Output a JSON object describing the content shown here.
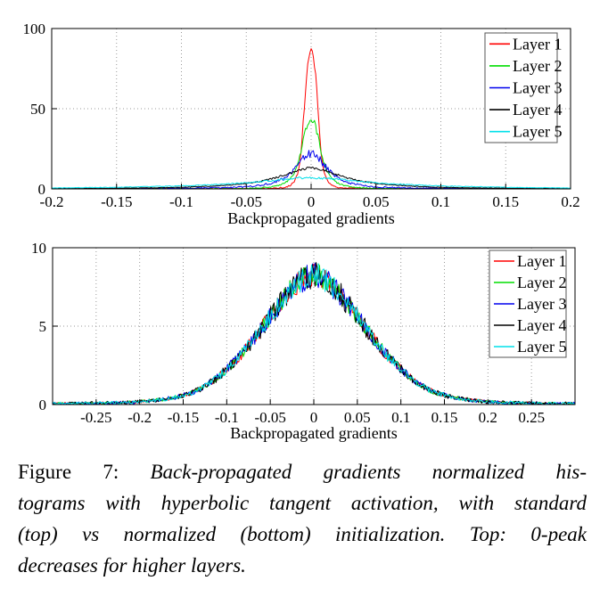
{
  "caption": {
    "label": "Figure 7:",
    "lines": [
      "Back-propagated gradients normalized his-",
      "tograms with hyperbolic tangent activation, with standard",
      "(top) vs normalized (bottom) initialization.  Top:  0-peak",
      "decreases for higher layers."
    ]
  },
  "colors": {
    "axis": "#000000",
    "grid": "#9a9a9a",
    "legend_border": "#555555",
    "legend_background": "#ffffff"
  },
  "chart_data": [
    {
      "type": "line",
      "title": "",
      "xlabel": "Backpropagated gradients",
      "ylabel": "",
      "xlim": [
        -0.2,
        0.2
      ],
      "ylim": [
        0,
        100
      ],
      "xtick_labels": [
        "-0.2",
        "-0.15",
        "-0.1",
        "-0.05",
        "0",
        "0.05",
        "0.1",
        "0.15",
        "0.2"
      ],
      "ytick_labels": [
        "0",
        "50",
        "100"
      ],
      "grid": true,
      "legend_position": "top-right",
      "series": [
        {
          "name": "Layer 1",
          "color": "#ff0000",
          "peak": 87,
          "noise": 3.0,
          "points": [
            [
              -0.2,
              0.1
            ],
            [
              -0.06,
              0.15
            ],
            [
              -0.04,
              0.25
            ],
            [
              -0.03,
              0.4
            ],
            [
              -0.025,
              0.6
            ],
            [
              -0.02,
              1
            ],
            [
              -0.016,
              2.2
            ],
            [
              -0.013,
              4.5
            ],
            [
              -0.01,
              10
            ],
            [
              -0.008,
              20
            ],
            [
              -0.006,
              42
            ],
            [
              -0.004,
              66
            ],
            [
              -0.002,
              80
            ],
            [
              0,
              87
            ],
            [
              0.002,
              80
            ],
            [
              0.004,
              66
            ],
            [
              0.006,
              42
            ],
            [
              0.008,
              20
            ],
            [
              0.01,
              10
            ],
            [
              0.013,
              4.5
            ],
            [
              0.016,
              2.2
            ],
            [
              0.02,
              1
            ],
            [
              0.025,
              0.6
            ],
            [
              0.03,
              0.4
            ],
            [
              0.04,
              0.25
            ],
            [
              0.06,
              0.15
            ],
            [
              0.2,
              0.1
            ]
          ]
        },
        {
          "name": "Layer 2",
          "color": "#00dd00",
          "peak": 44,
          "noise": 2.5,
          "points": [
            [
              -0.2,
              0.1
            ],
            [
              -0.07,
              0.2
            ],
            [
              -0.05,
              0.35
            ],
            [
              -0.04,
              0.6
            ],
            [
              -0.03,
              1.3
            ],
            [
              -0.025,
              2.2
            ],
            [
              -0.02,
              3.8
            ],
            [
              -0.016,
              6.5
            ],
            [
              -0.013,
              10
            ],
            [
              -0.01,
              16
            ],
            [
              -0.008,
              22
            ],
            [
              -0.006,
              30
            ],
            [
              -0.004,
              37
            ],
            [
              -0.002,
              42
            ],
            [
              0,
              44
            ],
            [
              0.002,
              42
            ],
            [
              0.004,
              37
            ],
            [
              0.006,
              30
            ],
            [
              0.008,
              22
            ],
            [
              0.01,
              16
            ],
            [
              0.013,
              10
            ],
            [
              0.016,
              6.5
            ],
            [
              0.02,
              3.8
            ],
            [
              0.025,
              2.2
            ],
            [
              0.03,
              1.3
            ],
            [
              0.04,
              0.6
            ],
            [
              0.05,
              0.35
            ],
            [
              0.07,
              0.2
            ],
            [
              0.2,
              0.1
            ]
          ]
        },
        {
          "name": "Layer 3",
          "color": "#0000ee",
          "peak": 22,
          "noise": 2.8,
          "points": [
            [
              -0.2,
              0.15
            ],
            [
              -0.12,
              0.25
            ],
            [
              -0.08,
              0.5
            ],
            [
              -0.06,
              0.9
            ],
            [
              -0.05,
              1.3
            ],
            [
              -0.04,
              2.1
            ],
            [
              -0.03,
              3.6
            ],
            [
              -0.025,
              5
            ],
            [
              -0.02,
              7
            ],
            [
              -0.015,
              10.5
            ],
            [
              -0.01,
              15
            ],
            [
              -0.007,
              18
            ],
            [
              -0.004,
              20.5
            ],
            [
              0,
              22
            ],
            [
              0.004,
              20.5
            ],
            [
              0.007,
              18
            ],
            [
              0.01,
              15
            ],
            [
              0.015,
              10.5
            ],
            [
              0.02,
              7
            ],
            [
              0.025,
              5
            ],
            [
              0.03,
              3.6
            ],
            [
              0.04,
              2.1
            ],
            [
              0.05,
              1.3
            ],
            [
              0.06,
              0.9
            ],
            [
              0.08,
              0.5
            ],
            [
              0.12,
              0.25
            ],
            [
              0.2,
              0.15
            ]
          ]
        },
        {
          "name": "Layer 4",
          "color": "#000000",
          "peak": 13,
          "noise": 0.9,
          "points": [
            [
              -0.2,
              0.2
            ],
            [
              -0.15,
              0.45
            ],
            [
              -0.12,
              0.7
            ],
            [
              -0.1,
              1
            ],
            [
              -0.08,
              1.6
            ],
            [
              -0.06,
              2.6
            ],
            [
              -0.05,
              3.4
            ],
            [
              -0.04,
              4.6
            ],
            [
              -0.03,
              6.3
            ],
            [
              -0.02,
              8.8
            ],
            [
              -0.015,
              10.3
            ],
            [
              -0.01,
              11.7
            ],
            [
              -0.005,
              12.6
            ],
            [
              0,
              13
            ],
            [
              0.005,
              12.6
            ],
            [
              0.01,
              11.7
            ],
            [
              0.015,
              10.3
            ],
            [
              0.02,
              8.8
            ],
            [
              0.03,
              6.3
            ],
            [
              0.04,
              4.6
            ],
            [
              0.05,
              3.4
            ],
            [
              0.06,
              2.6
            ],
            [
              0.08,
              1.6
            ],
            [
              0.1,
              1
            ],
            [
              0.12,
              0.7
            ],
            [
              0.15,
              0.45
            ],
            [
              0.2,
              0.2
            ]
          ]
        },
        {
          "name": "Layer 5",
          "color": "#00e0ea",
          "peak": 7,
          "noise": 0.7,
          "points": [
            [
              -0.2,
              0.6
            ],
            [
              -0.15,
              1
            ],
            [
              -0.12,
              1.5
            ],
            [
              -0.1,
              1.9
            ],
            [
              -0.08,
              2.5
            ],
            [
              -0.06,
              3.3
            ],
            [
              -0.05,
              3.8
            ],
            [
              -0.04,
              4.5
            ],
            [
              -0.03,
              5.2
            ],
            [
              -0.02,
              6
            ],
            [
              -0.01,
              6.7
            ],
            [
              0,
              7
            ],
            [
              0.01,
              6.7
            ],
            [
              0.02,
              6
            ],
            [
              0.03,
              5.2
            ],
            [
              0.04,
              4.5
            ],
            [
              0.05,
              3.8
            ],
            [
              0.06,
              3.3
            ],
            [
              0.08,
              2.5
            ],
            [
              0.1,
              1.9
            ],
            [
              0.12,
              1.5
            ],
            [
              0.15,
              1
            ],
            [
              0.2,
              0.6
            ]
          ]
        }
      ]
    },
    {
      "type": "line",
      "title": "",
      "xlabel": "Backpropagated gradients",
      "ylabel": "",
      "xlim": [
        -0.3,
        0.3
      ],
      "ylim": [
        0,
        10
      ],
      "xtick_labels": [
        "-0.25",
        "-0.2",
        "-0.15",
        "-0.1",
        "-0.05",
        "0",
        "0.05",
        "0.1",
        "0.15",
        "0.2",
        "0.25"
      ],
      "ytick_labels": [
        "0",
        "5",
        "10"
      ],
      "grid": true,
      "legend_position": "top-right",
      "shared_points": [
        [
          -0.3,
          0.05
        ],
        [
          -0.27,
          0.06
        ],
        [
          -0.25,
          0.08
        ],
        [
          -0.22,
          0.12
        ],
        [
          -0.2,
          0.18
        ],
        [
          -0.18,
          0.28
        ],
        [
          -0.16,
          0.45
        ],
        [
          -0.15,
          0.6
        ],
        [
          -0.14,
          0.75
        ],
        [
          -0.13,
          1
        ],
        [
          -0.12,
          1.35
        ],
        [
          -0.11,
          1.75
        ],
        [
          -0.1,
          2.25
        ],
        [
          -0.09,
          2.8
        ],
        [
          -0.08,
          3.4
        ],
        [
          -0.07,
          4.1
        ],
        [
          -0.06,
          4.85
        ],
        [
          -0.05,
          5.6
        ],
        [
          -0.04,
          6.35
        ],
        [
          -0.03,
          7.05
        ],
        [
          -0.02,
          7.65
        ],
        [
          -0.01,
          8.1
        ],
        [
          0,
          8.3
        ],
        [
          0.01,
          8.1
        ],
        [
          0.02,
          7.65
        ],
        [
          0.03,
          7.05
        ],
        [
          0.04,
          6.35
        ],
        [
          0.05,
          5.6
        ],
        [
          0.06,
          4.85
        ],
        [
          0.07,
          4.1
        ],
        [
          0.08,
          3.4
        ],
        [
          0.09,
          2.8
        ],
        [
          0.1,
          2.25
        ],
        [
          0.11,
          1.75
        ],
        [
          0.12,
          1.35
        ],
        [
          0.13,
          1
        ],
        [
          0.14,
          0.75
        ],
        [
          0.15,
          0.6
        ],
        [
          0.16,
          0.45
        ],
        [
          0.18,
          0.28
        ],
        [
          0.2,
          0.18
        ],
        [
          0.22,
          0.12
        ],
        [
          0.25,
          0.08
        ],
        [
          0.27,
          0.06
        ],
        [
          0.3,
          0.05
        ]
      ],
      "series": [
        {
          "name": "Layer 1",
          "color": "#ff0000",
          "peak": 8.3,
          "noise": 0.75
        },
        {
          "name": "Layer 2",
          "color": "#00dd00",
          "peak": 8.3,
          "noise": 0.8
        },
        {
          "name": "Layer 3",
          "color": "#0000ee",
          "peak": 8.3,
          "noise": 0.85
        },
        {
          "name": "Layer 4",
          "color": "#000000",
          "peak": 8.3,
          "noise": 0.9
        },
        {
          "name": "Layer 5",
          "color": "#00e0ea",
          "peak": 8.3,
          "noise": 0.8
        }
      ]
    }
  ]
}
